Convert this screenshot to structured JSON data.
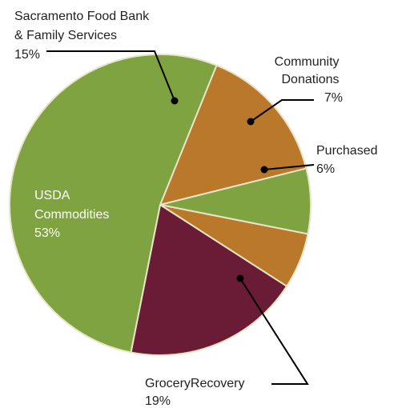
{
  "chart_data": {
    "type": "pie",
    "slices": [
      {
        "label_lines": [
          "Sacramento Food Bank",
          "& Family Services"
        ],
        "pct_label": "15%",
        "value": 15,
        "color": "#b9782a"
      },
      {
        "label_lines": [
          "Community",
          "Donations"
        ],
        "pct_label": "7%",
        "value": 7,
        "color": "#7ea340"
      },
      {
        "label_lines": [
          "Purchased"
        ],
        "pct_label": "6%",
        "value": 6,
        "color": "#b9782a"
      },
      {
        "label_lines": [
          "GroceryRecovery"
        ],
        "pct_label": "19%",
        "value": 19,
        "color": "#6a1c36"
      },
      {
        "label_lines": [
          "USDA",
          "Commodities"
        ],
        "pct_label": "53%",
        "value": 53,
        "color": "#7ea340"
      }
    ]
  }
}
